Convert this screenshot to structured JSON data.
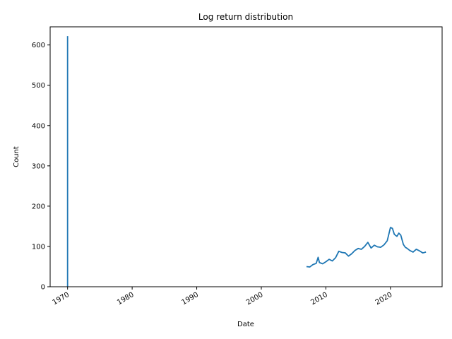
{
  "chart_data": {
    "type": "line",
    "title": "Log return distribution",
    "xlabel": "Date",
    "ylabel": "Count",
    "xlim": [
      1967.3,
      2028.0
    ],
    "ylim": [
      0,
      645
    ],
    "x_ticks": [
      1970,
      1980,
      1990,
      2000,
      2010,
      2020
    ],
    "x_tick_labels": [
      "1970",
      "1980",
      "1990",
      "2000",
      "2010",
      "2020"
    ],
    "y_ticks": [
      0,
      100,
      200,
      300,
      400,
      500,
      600
    ],
    "y_tick_labels": [
      "0",
      "100",
      "200",
      "300",
      "400",
      "500",
      "600"
    ],
    "grid": false,
    "series": [
      {
        "color": "#1f77b4",
        "spike": {
          "x": 1970.0,
          "y_from": 0,
          "y_to": 622
        },
        "x": [
          2007.0,
          2007.5,
          2008.0,
          2008.5,
          2008.8,
          2009.0,
          2009.5,
          2010.0,
          2010.5,
          2011.0,
          2011.5,
          2012.0,
          2012.5,
          2013.0,
          2013.5,
          2014.0,
          2014.5,
          2015.0,
          2015.5,
          2016.0,
          2016.5,
          2017.0,
          2017.5,
          2018.0,
          2018.5,
          2019.0,
          2019.5,
          2020.0,
          2020.3,
          2020.6,
          2021.0,
          2021.3,
          2021.6,
          2022.0,
          2022.3,
          2022.6,
          2023.0,
          2023.5,
          2024.0,
          2024.5,
          2025.0,
          2025.5
        ],
        "y": [
          50,
          49,
          55,
          58,
          73,
          60,
          57,
          62,
          68,
          64,
          72,
          88,
          85,
          84,
          76,
          82,
          90,
          95,
          93,
          100,
          110,
          96,
          103,
          99,
          98,
          104,
          114,
          147,
          145,
          130,
          125,
          133,
          128,
          105,
          98,
          95,
          90,
          86,
          93,
          89,
          84,
          86
        ]
      }
    ]
  }
}
